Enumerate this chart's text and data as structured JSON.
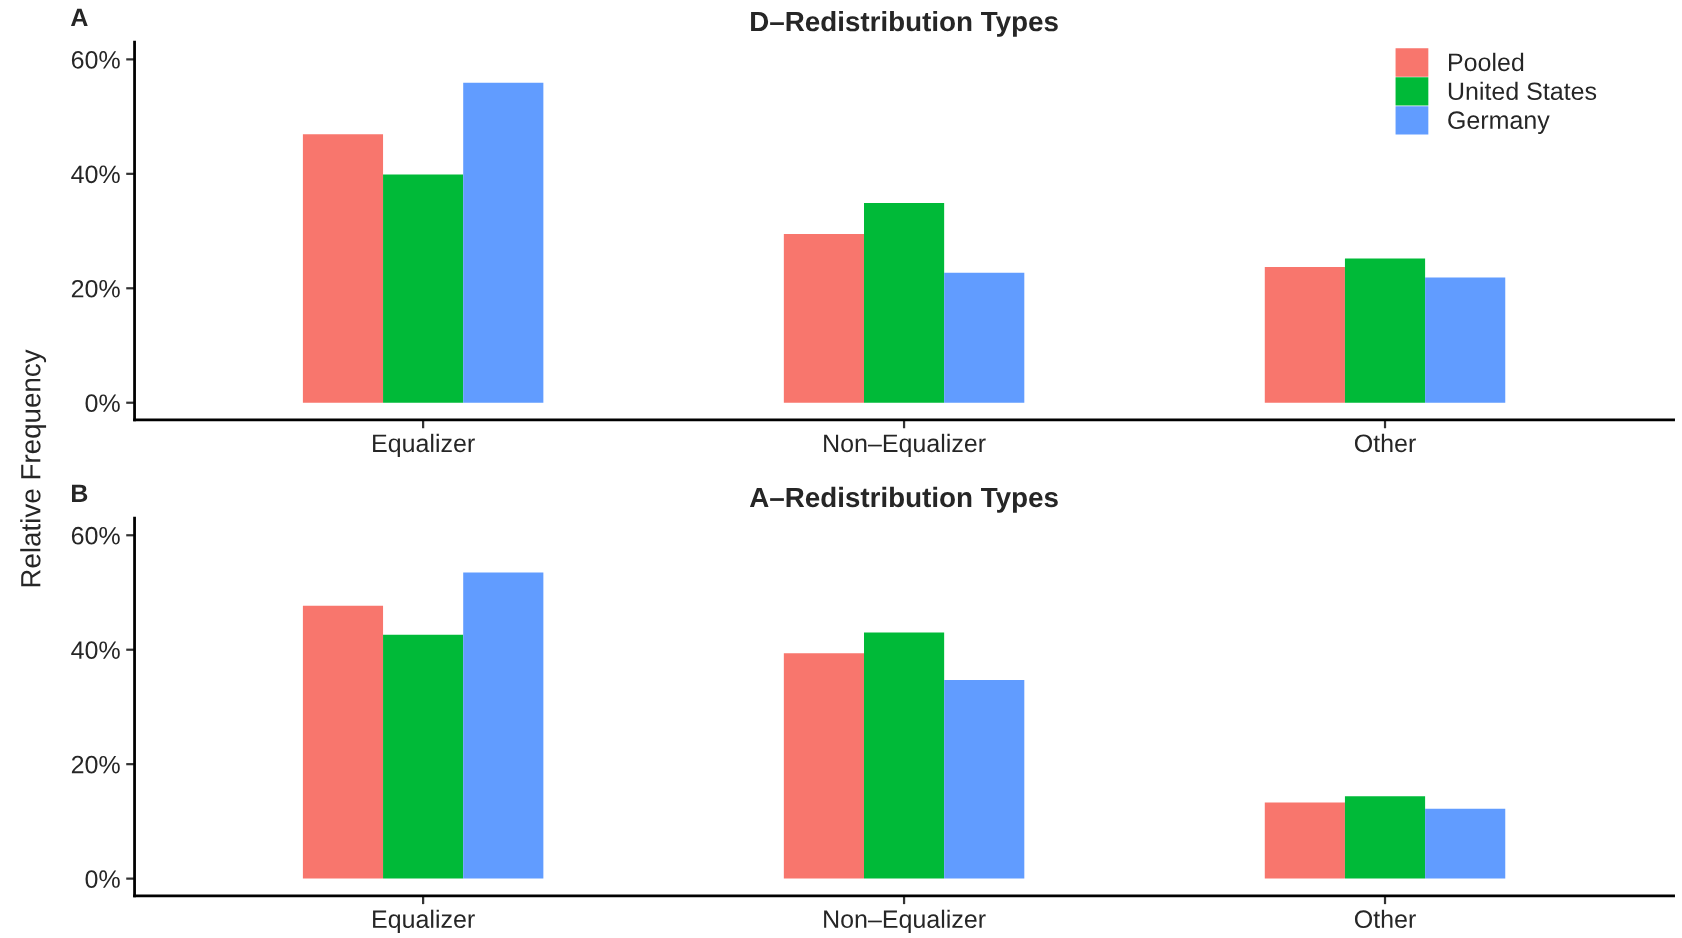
{
  "chart_data": [
    {
      "type": "bar",
      "title": "D–Redistribution Types",
      "ylabel": "Relative Frequency",
      "annotations": [
        "A"
      ],
      "categories": [
        "Equalizer",
        "Non–Equalizer",
        "Other"
      ],
      "series": [
        {
          "name": "Pooled",
          "color": "#f8766d",
          "values": [
            46.9,
            29.5,
            23.7
          ]
        },
        {
          "name": "United States",
          "color": "#00ba38",
          "values": [
            39.9,
            34.9,
            25.2
          ]
        },
        {
          "name": "Germany",
          "color": "#619cff",
          "values": [
            55.9,
            22.7,
            21.9
          ]
        }
      ],
      "ylim": [
        -3,
        63
      ],
      "yticks": [
        {
          "value": 0,
          "label": "0%"
        },
        {
          "value": 20,
          "label": "20%"
        },
        {
          "value": 40,
          "label": "40%"
        },
        {
          "value": 60,
          "label": "60%"
        }
      ],
      "legend": "top right",
      "grid": false
    },
    {
      "type": "bar",
      "title": "A–Redistribution Types",
      "annotations": [
        "B"
      ],
      "categories": [
        "Equalizer",
        "Non–Equalizer",
        "Other"
      ],
      "series": [
        {
          "color": "#f8766d",
          "values": [
            47.7,
            39.4,
            13.3
          ]
        },
        {
          "color": "#00ba38",
          "values": [
            42.6,
            43.0,
            14.4
          ]
        },
        {
          "color": "#619cff",
          "values": [
            53.5,
            34.7,
            12.2
          ]
        }
      ],
      "ylim": [
        -3,
        63
      ],
      "yticks": [
        {
          "value": 0,
          "label": "0%"
        },
        {
          "value": 20,
          "label": "20%"
        },
        {
          "value": 40,
          "label": "40%"
        },
        {
          "value": 60,
          "label": "60%"
        }
      ],
      "legend": false,
      "grid": false
    }
  ]
}
